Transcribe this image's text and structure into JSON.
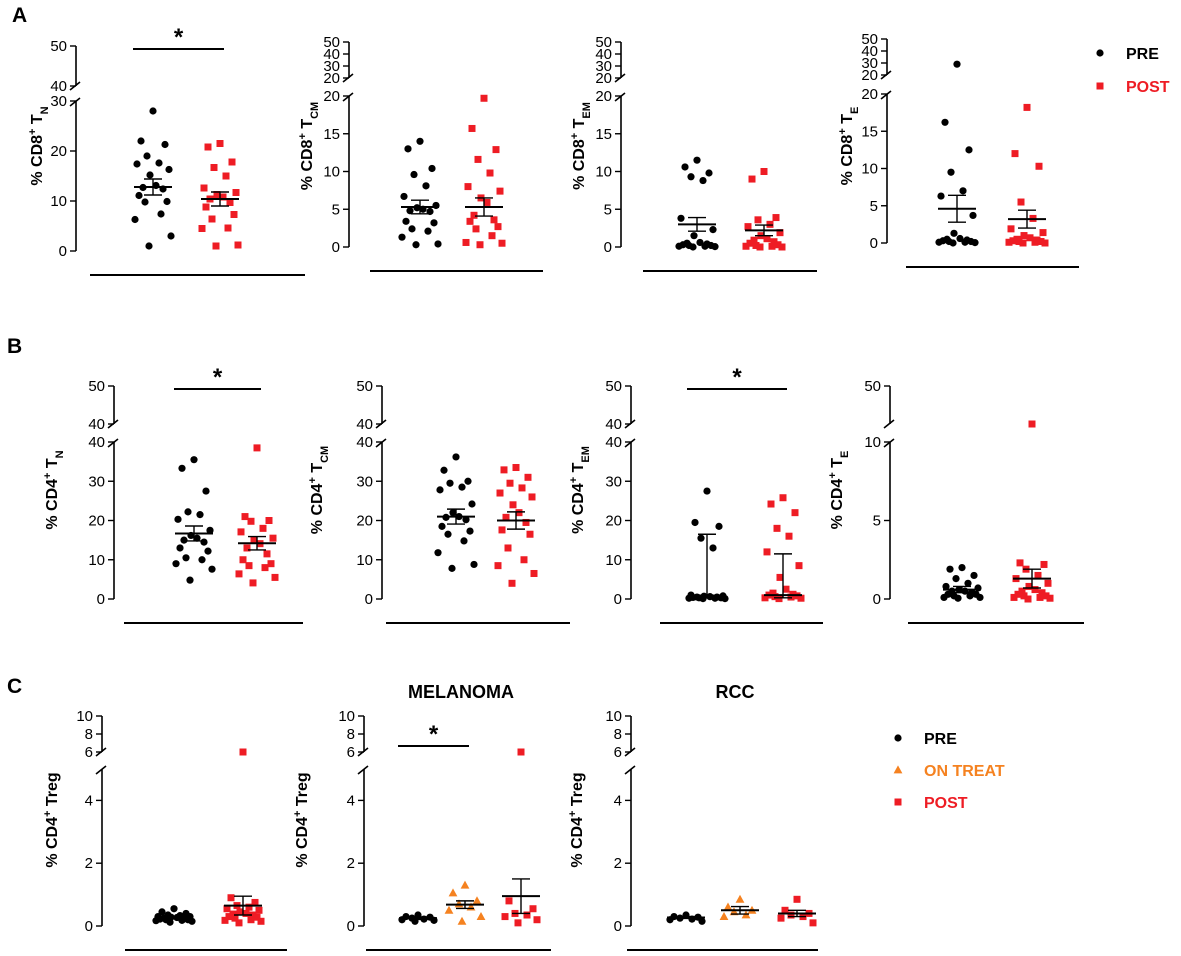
{
  "colors": {
    "pre": "#000000",
    "on_treat": "#f58220",
    "post": "#ee1c24",
    "axis": "#000000"
  },
  "legend_ab": {
    "entries": [
      {
        "label": "PRE",
        "key": "pre",
        "marker": "circle"
      },
      {
        "label": "POST",
        "key": "post",
        "marker": "square"
      }
    ]
  },
  "legend_c": {
    "entries": [
      {
        "label": "PRE",
        "key": "pre",
        "marker": "circle"
      },
      {
        "label": "ON TREAT",
        "key": "on_treat",
        "marker": "triangle"
      },
      {
        "label": "POST",
        "key": "post",
        "marker": "square"
      }
    ]
  },
  "chart_data": [
    {
      "panel_letter": "A",
      "type": "scatter",
      "ylabel": {
        "main": "% CD8",
        "sup": "+",
        "tail": " T",
        "sub": "N"
      },
      "title": "",
      "significance": "*",
      "sig_between": [
        "pre",
        "post"
      ],
      "axis": {
        "upper": [
          40,
          50
        ],
        "lower_max": 30,
        "upper_ticks": [
          40,
          50
        ],
        "lower_ticks": [
          0,
          10,
          20,
          30
        ]
      },
      "groups": [
        {
          "key": "pre",
          "mean": 12.8,
          "sem": 1.6,
          "values": [
            28,
            22,
            21.3,
            19,
            17.6,
            17.4,
            16.3,
            15.2,
            13.1,
            12.7,
            12.4,
            11.1,
            9.9,
            9.8,
            7.4,
            6.3,
            3.0,
            1.0
          ]
        },
        {
          "key": "post",
          "mean": 10.4,
          "sem": 1.4,
          "values": [
            21.5,
            20.8,
            17.8,
            16.7,
            15.0,
            12.6,
            11.7,
            11.3,
            10.8,
            10.4,
            9.7,
            8.8,
            7.3,
            6.4,
            4.6,
            4.5,
            1.2,
            1.0
          ]
        }
      ]
    },
    {
      "panel_letter": "",
      "type": "scatter",
      "ylabel": {
        "main": "% CD8",
        "sup": "+",
        "tail": " T",
        "sub": "CM"
      },
      "title": "",
      "significance": "",
      "axis": {
        "upper": [
          20,
          50
        ],
        "lower_max": 20,
        "upper_ticks": [
          20,
          30,
          40,
          50
        ],
        "lower_ticks": [
          0,
          5,
          10,
          15,
          20
        ]
      },
      "groups": [
        {
          "key": "pre",
          "mean": 5.3,
          "sem": 0.9,
          "values": [
            14.0,
            13.0,
            10.4,
            9.6,
            8.1,
            6.7,
            5.5,
            5.2,
            5.0,
            4.8,
            4.7,
            3.4,
            3.2,
            2.4,
            2.1,
            1.3,
            0.4,
            0.3
          ]
        },
        {
          "key": "post",
          "mean": 5.3,
          "sem": 1.2,
          "values": [
            19.7,
            15.7,
            12.9,
            11.6,
            9.8,
            8.0,
            7.4,
            6.5,
            5.9,
            4.2,
            3.6,
            3.4,
            2.7,
            2.4,
            1.5,
            0.6,
            0.5,
            0.3
          ]
        }
      ]
    },
    {
      "panel_letter": "",
      "type": "scatter",
      "ylabel": {
        "main": "% CD8",
        "sup": "+",
        "tail": " T",
        "sub": "EM"
      },
      "title": "",
      "significance": "",
      "axis": {
        "upper": [
          20,
          50
        ],
        "lower_max": 20,
        "upper_ticks": [
          20,
          30,
          40,
          50
        ],
        "lower_ticks": [
          0,
          5,
          10,
          15,
          20
        ]
      },
      "groups": [
        {
          "key": "pre",
          "mean": 3.0,
          "sem": 0.9,
          "values": [
            11.5,
            10.6,
            9.8,
            9.3,
            8.8,
            3.8,
            2.3,
            1.5,
            0.6,
            0.5,
            0.4,
            0.3,
            0.2,
            0.2,
            0.1,
            0.1,
            0.05,
            0.0
          ]
        },
        {
          "key": "post",
          "mean": 2.2,
          "sem": 0.7,
          "values": [
            10.0,
            9.0,
            3.9,
            3.6,
            3.0,
            2.7,
            1.9,
            1.5,
            1.1,
            0.9,
            0.7,
            0.5,
            0.3,
            0.2,
            0.1,
            0.1,
            0.0,
            0.0
          ]
        }
      ]
    },
    {
      "panel_letter": "",
      "type": "scatter",
      "ylabel": {
        "main": "% CD8",
        "sup": "+",
        "tail": " T",
        "sub": "E"
      },
      "title": "",
      "significance": "",
      "axis": {
        "upper": [
          20,
          50
        ],
        "lower_max": 20,
        "upper_ticks": [
          20,
          30,
          40,
          50
        ],
        "lower_ticks": [
          0,
          5,
          10,
          15,
          20
        ]
      },
      "groups": [
        {
          "key": "pre",
          "mean": 4.6,
          "sem": 1.8,
          "values": [
            29.0,
            16.2,
            12.5,
            9.5,
            7.0,
            6.3,
            3.7,
            1.3,
            0.6,
            0.5,
            0.4,
            0.3,
            0.2,
            0.2,
            0.1,
            0.1,
            0.05,
            0.0
          ]
        },
        {
          "key": "post",
          "mean": 3.2,
          "sem": 1.2,
          "values": [
            18.2,
            12.0,
            10.3,
            5.5,
            3.3,
            1.9,
            1.4,
            1.0,
            0.7,
            0.5,
            0.4,
            0.3,
            0.2,
            0.2,
            0.1,
            0.1,
            0.0,
            0.0
          ]
        }
      ]
    },
    {
      "panel_letter": "B",
      "type": "scatter",
      "ylabel": {
        "main": "% CD4",
        "sup": "+",
        "tail": " T",
        "sub": "N"
      },
      "title": "",
      "significance": "*",
      "sig_between": [
        "pre",
        "post"
      ],
      "axis": {
        "upper": [
          40,
          50
        ],
        "lower_max": 40,
        "upper_ticks": [
          40,
          50
        ],
        "lower_ticks": [
          0,
          10,
          20,
          30,
          40
        ]
      },
      "groups": [
        {
          "key": "pre",
          "mean": 16.7,
          "sem": 1.9,
          "values": [
            35.5,
            33.3,
            27.5,
            22.2,
            21.5,
            20.3,
            17.5,
            16.2,
            15.5,
            15.0,
            14.5,
            13.0,
            12.2,
            10.5,
            10.0,
            9.0,
            7.6,
            4.8
          ]
        },
        {
          "key": "post",
          "mean": 14.2,
          "sem": 1.7,
          "values": [
            38.5,
            21.0,
            20.0,
            19.8,
            18.0,
            17.1,
            15.5,
            15.0,
            14.1,
            13.0,
            11.5,
            10.0,
            9.0,
            8.5,
            8.0,
            6.4,
            5.5,
            4.1
          ]
        }
      ]
    },
    {
      "panel_letter": "",
      "type": "scatter",
      "ylabel": {
        "main": "% CD4",
        "sup": "+",
        "tail": " T",
        "sub": "CM"
      },
      "title": "",
      "significance": "",
      "axis": {
        "upper": [
          40,
          50
        ],
        "lower_max": 40,
        "upper_ticks": [
          40,
          50
        ],
        "lower_ticks": [
          0,
          10,
          20,
          30,
          40
        ]
      },
      "groups": [
        {
          "key": "pre",
          "mean": 21.0,
          "sem": 1.9,
          "values": [
            36.2,
            32.8,
            30.0,
            29.5,
            28.5,
            27.8,
            24.2,
            22.0,
            21.0,
            20.8,
            20.2,
            18.5,
            17.3,
            16.5,
            14.8,
            11.8,
            8.8,
            7.8
          ]
        },
        {
          "key": "post",
          "mean": 20.0,
          "sem": 2.2,
          "values": [
            33.5,
            32.9,
            31.0,
            29.5,
            28.3,
            27.0,
            26.0,
            24.0,
            22.0,
            20.8,
            19.5,
            17.6,
            16.5,
            13.0,
            10.0,
            8.5,
            6.5,
            4.0
          ]
        }
      ]
    },
    {
      "panel_letter": "",
      "type": "scatter",
      "ylabel": {
        "main": "% CD4",
        "sup": "+",
        "tail": " T",
        "sub": "EM"
      },
      "title": "",
      "significance": "*",
      "sig_between": [
        "pre",
        "post"
      ],
      "axis": {
        "upper": [
          40,
          50
        ],
        "lower_max": 40,
        "upper_ticks": [
          40,
          50
        ],
        "lower_ticks": [
          0,
          10,
          20,
          30,
          40
        ]
      },
      "groups": [
        {
          "key": "pre",
          "median": 0.9,
          "iqr": [
            0.3,
            16.5
          ],
          "values": [
            27.5,
            19.5,
            18.5,
            15.5,
            13.0,
            1.0,
            0.8,
            0.7,
            0.6,
            0.5,
            0.5,
            0.4,
            0.3,
            0.3,
            0.2,
            0.2,
            0.1,
            0.1
          ]
        },
        {
          "key": "post",
          "median": 1.0,
          "iqr": [
            0.3,
            11.5
          ],
          "values": [
            25.8,
            24.2,
            22.0,
            18.0,
            16.0,
            12.0,
            8.5,
            5.5,
            2.5,
            1.5,
            1.2,
            1.0,
            0.8,
            0.6,
            0.5,
            0.3,
            0.2,
            0.1
          ]
        }
      ]
    },
    {
      "panel_letter": "",
      "type": "scatter",
      "ylabel": {
        "main": "% CD4",
        "sup": "+",
        "tail": " T",
        "sub": "E"
      },
      "title": "",
      "significance": "",
      "axis": {
        "upper": [
          40,
          50
        ],
        "lower_max": 10,
        "upper_ticks": [
          50
        ],
        "lower_ticks": [
          0,
          5,
          10
        ]
      },
      "groups": [
        {
          "key": "pre",
          "mean": 0.6,
          "sem": 0.2,
          "values": [
            2.0,
            1.9,
            1.5,
            1.3,
            1.0,
            0.8,
            0.7,
            0.6,
            0.5,
            0.5,
            0.4,
            0.3,
            0.3,
            0.2,
            0.2,
            0.1,
            0.1,
            0.05
          ]
        },
        {
          "key": "post",
          "mean": 1.3,
          "sem": 0.6,
          "values": [
            11.3,
            2.3,
            2.2,
            1.9,
            1.5,
            1.3,
            1.0,
            0.8,
            0.6,
            0.5,
            0.4,
            0.3,
            0.2,
            0.2,
            0.1,
            0.1,
            0.05,
            0.0
          ]
        }
      ]
    },
    {
      "panel_letter": "C",
      "type": "scatter",
      "ylabel": {
        "main": "% CD4",
        "sup": "+",
        "tail": " Treg",
        "sub": ""
      },
      "title": "",
      "significance": "",
      "axis": {
        "upper": [
          6,
          10
        ],
        "lower_max": 5,
        "upper_ticks": [
          6,
          8,
          10
        ],
        "lower_ticks": [
          0,
          2,
          4
        ]
      },
      "groups": [
        {
          "key": "pre",
          "mean": 0.28,
          "sem": 0.03,
          "values": [
            0.55,
            0.45,
            0.4,
            0.35,
            0.33,
            0.3,
            0.3,
            0.28,
            0.27,
            0.25,
            0.24,
            0.22,
            0.2,
            0.2,
            0.18,
            0.17,
            0.15,
            0.12
          ]
        },
        {
          "key": "post",
          "mean": 0.65,
          "sem": 0.3,
          "values": [
            5.7,
            0.9,
            0.75,
            0.65,
            0.6,
            0.55,
            0.5,
            0.45,
            0.4,
            0.38,
            0.35,
            0.3,
            0.28,
            0.25,
            0.2,
            0.18,
            0.15,
            0.1
          ]
        }
      ]
    },
    {
      "panel_letter": "",
      "type": "scatter",
      "ylabel": {
        "main": "% CD4",
        "sup": "+",
        "tail": " Treg",
        "sub": ""
      },
      "title": "MELANOMA",
      "significance": "*",
      "sig_between": [
        "pre",
        "on_treat"
      ],
      "axis": {
        "upper": [
          6,
          10
        ],
        "lower_max": 5,
        "upper_ticks": [
          6,
          8,
          10
        ],
        "lower_ticks": [
          0,
          2,
          4
        ]
      },
      "groups": [
        {
          "key": "pre",
          "mean": 0.25,
          "sem": 0.04,
          "values": [
            0.35,
            0.3,
            0.28,
            0.25,
            0.22,
            0.2,
            0.18,
            0.15
          ]
        },
        {
          "key": "on_treat",
          "mean": 0.68,
          "sem": 0.12,
          "values": [
            1.3,
            1.05,
            0.8,
            0.7,
            0.6,
            0.5,
            0.3,
            0.15
          ]
        },
        {
          "key": "post",
          "mean": 0.95,
          "sem": 0.55,
          "values": [
            5.7,
            0.8,
            0.55,
            0.4,
            0.35,
            0.3,
            0.2,
            0.1
          ]
        }
      ]
    },
    {
      "panel_letter": "",
      "type": "scatter",
      "ylabel": {
        "main": "% CD4",
        "sup": "+",
        "tail": " Treg",
        "sub": ""
      },
      "title": "RCC",
      "significance": "",
      "axis": {
        "upper": [
          6,
          10
        ],
        "lower_max": 5,
        "upper_ticks": [
          6,
          8,
          10
        ],
        "lower_ticks": [
          0,
          2,
          4
        ]
      },
      "groups": [
        {
          "key": "pre",
          "mean": 0.27,
          "sem": 0.03,
          "values": [
            0.35,
            0.3,
            0.28,
            0.25,
            0.22,
            0.2,
            0.15
          ]
        },
        {
          "key": "on_treat",
          "mean": 0.5,
          "sem": 0.12,
          "values": [
            0.85,
            0.6,
            0.5,
            0.45,
            0.35,
            0.3
          ]
        },
        {
          "key": "post",
          "mean": 0.4,
          "sem": 0.1,
          "values": [
            0.85,
            0.5,
            0.4,
            0.35,
            0.3,
            0.25,
            0.1
          ]
        }
      ]
    }
  ]
}
